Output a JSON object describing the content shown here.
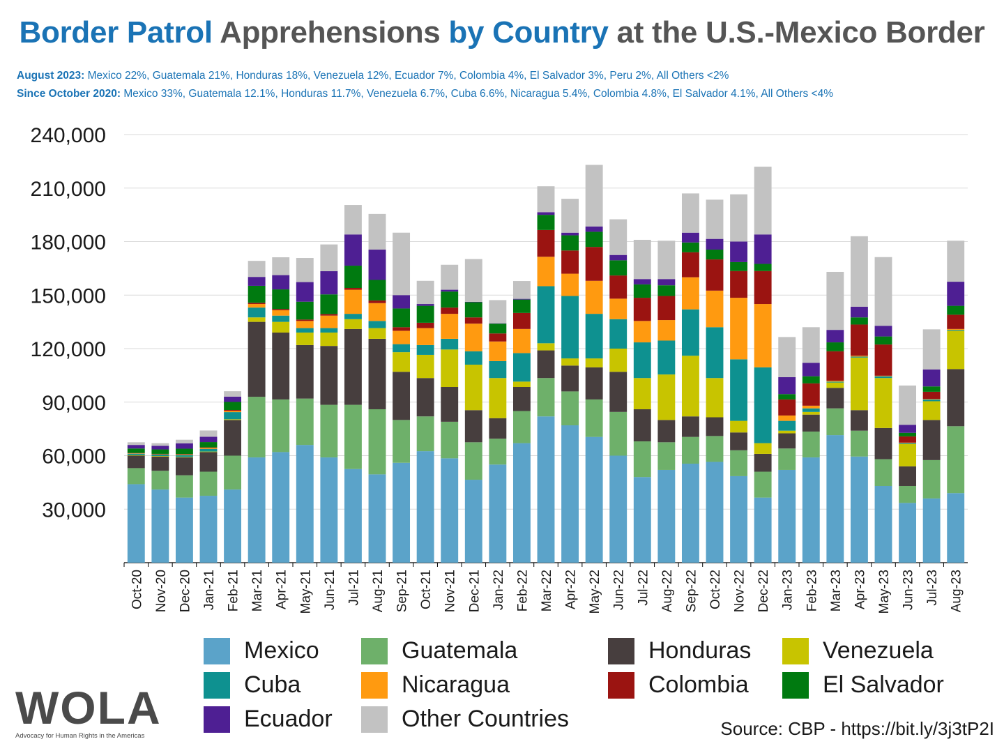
{
  "title": {
    "part1": "Border Patrol",
    "part2": " Apprehensions ",
    "part3": "by Country",
    "part4": " at the U.S.-Mexico Border"
  },
  "subtitle1": {
    "label": "August 2023:",
    "text": " Mexico 22%, Guatemala 21%, Honduras 18%, Venezuela 12%, Ecuador 7%, Colombia 4%, El Salvador 3%, Peru 2%, All Others <2%"
  },
  "subtitle2": {
    "label": "Since October 2020:",
    "text": " Mexico 33%, Guatemala 12.1%, Honduras 11.7%, Venezuela 6.7%, Cuba 6.6%, Nicaragua 5.4%, Colombia 4.8%, El Salvador 4.1%, All Others <4%"
  },
  "logo": {
    "text": "WOLA",
    "tagline": "Advocacy for Human Rights in the Americas"
  },
  "source": "Source: CBP - https://bit.ly/3j3tP2I",
  "chart_data": {
    "type": "bar",
    "stacked": true,
    "ylim": [
      0,
      240000
    ],
    "yticks": [
      "30,000",
      "60,000",
      "90,000",
      "120,000",
      "150,000",
      "180,000",
      "210,000",
      "240,000"
    ],
    "grid": true,
    "legend_position": "bottom",
    "categories": [
      "Oct-20",
      "Nov-20",
      "Dec-20",
      "Jan-21",
      "Feb-21",
      "Mar-21",
      "Apr-21",
      "May-21",
      "Jun-21",
      "Jul-21",
      "Aug-21",
      "Sep-21",
      "Oct-21",
      "Nov-21",
      "Dec-21",
      "Jan-22",
      "Feb-22",
      "Mar-22",
      "Apr-22",
      "May-22",
      "Jun-22",
      "Jul-22",
      "Aug-22",
      "Sep-22",
      "Oct-22",
      "Nov-22",
      "Dec-22",
      "Jan-23",
      "Feb-23",
      "Mar-23",
      "Apr-23",
      "May-23",
      "Jun-23",
      "Jul-23",
      "Aug-23"
    ],
    "series": [
      {
        "name": "Mexico",
        "color": "#5ba3c9",
        "values": [
          44000,
          41000,
          36500,
          37500,
          41000,
          59000,
          62000,
          66000,
          59000,
          52500,
          49500,
          56000,
          62500,
          58500,
          46500,
          55000,
          67000,
          82000,
          77000,
          70500,
          60000,
          48000,
          52000,
          55500,
          56500,
          48500,
          36500,
          52000,
          59000,
          71500,
          59500,
          43000,
          33500,
          36000,
          39000
        ]
      },
      {
        "name": "Guatemala",
        "color": "#6eb06a",
        "values": [
          9000,
          10500,
          12500,
          13500,
          19000,
          34000,
          29500,
          26000,
          29500,
          36000,
          36500,
          24000,
          19500,
          20500,
          21000,
          14500,
          18000,
          21500,
          19000,
          21000,
          24500,
          20000,
          15500,
          15000,
          14500,
          14500,
          14500,
          12000,
          14500,
          15000,
          14500,
          15000,
          9500,
          21500,
          37500
        ]
      },
      {
        "name": "Honduras",
        "color": "#473e3e",
        "values": [
          7000,
          8000,
          10000,
          11000,
          20000,
          42000,
          37500,
          30000,
          33000,
          42500,
          39500,
          27000,
          21500,
          19500,
          18000,
          11500,
          13500,
          15500,
          14500,
          18000,
          22500,
          18000,
          12500,
          11500,
          10500,
          10000,
          10000,
          8500,
          9500,
          11500,
          11500,
          17500,
          11000,
          22500,
          32000
        ]
      },
      {
        "name": "Venezuela",
        "color": "#c8c400",
        "values": [
          300,
          300,
          300,
          300,
          400,
          2500,
          6000,
          7000,
          7500,
          5500,
          6000,
          11000,
          13000,
          21000,
          25500,
          22500,
          3000,
          4000,
          4000,
          5000,
          13000,
          17500,
          25500,
          34000,
          22000,
          6500,
          6000,
          1500,
          1500,
          3000,
          29500,
          28000,
          12500,
          10500,
          21500
        ]
      },
      {
        "name": "Cuba",
        "color": "#0e9190",
        "values": [
          800,
          800,
          1000,
          1500,
          4000,
          5500,
          3500,
          2500,
          2500,
          3000,
          4000,
          4500,
          5500,
          6000,
          7500,
          9500,
          16000,
          32000,
          35000,
          25000,
          16500,
          20000,
          19000,
          26000,
          28500,
          34500,
          42500,
          5500,
          2000,
          500,
          500,
          1000,
          500,
          1000,
          500
        ]
      },
      {
        "name": "Nicaragua",
        "color": "#ff9a10",
        "values": [
          200,
          200,
          300,
          500,
          700,
          2000,
          3000,
          4000,
          7000,
          13500,
          10000,
          7500,
          9500,
          14000,
          15500,
          11000,
          13500,
          16500,
          12500,
          18500,
          11500,
          12000,
          11500,
          18000,
          20500,
          34500,
          35500,
          3000,
          1500,
          500,
          500,
          300,
          300,
          300,
          500
        ]
      },
      {
        "name": "Colombia",
        "color": "#9b1411",
        "values": [
          200,
          200,
          300,
          300,
          500,
          700,
          700,
          800,
          900,
          1000,
          1500,
          2000,
          3000,
          3500,
          3500,
          4500,
          9000,
          15000,
          13000,
          19000,
          13000,
          13000,
          13500,
          14000,
          17500,
          15000,
          18500,
          9000,
          12500,
          16500,
          17500,
          17500,
          3500,
          4000,
          8000
        ]
      },
      {
        "name": "El Salvador",
        "color": "#007a10",
        "values": [
          2500,
          2500,
          3000,
          3000,
          4500,
          9500,
          11000,
          10000,
          11000,
          12500,
          11500,
          10500,
          9500,
          9000,
          8500,
          5500,
          7500,
          8500,
          8500,
          8500,
          8500,
          7500,
          6000,
          5500,
          5500,
          5000,
          4000,
          3000,
          4000,
          5000,
          4000,
          4500,
          2000,
          3000,
          5000
        ]
      },
      {
        "name": "Ecuador",
        "color": "#4e1f93",
        "values": [
          2000,
          2000,
          3000,
          3000,
          3000,
          5000,
          8000,
          11000,
          13000,
          17500,
          17000,
          7500,
          1000,
          1000,
          200,
          200,
          400,
          1500,
          1500,
          3000,
          3000,
          3000,
          3500,
          5500,
          6000,
          11500,
          16500,
          9500,
          7500,
          7000,
          6000,
          6000,
          4500,
          9500,
          13500
        ]
      },
      {
        "name": "Other Countries",
        "color": "#c2c2c2",
        "values": [
          1500,
          1500,
          2000,
          3500,
          3000,
          9000,
          10000,
          13500,
          15000,
          16500,
          20000,
          35000,
          13000,
          14000,
          24000,
          13000,
          10000,
          14500,
          19000,
          34500,
          20000,
          22000,
          21500,
          22000,
          22000,
          26500,
          38000,
          22500,
          20000,
          32500,
          39500,
          38500,
          22000,
          22500,
          23000
        ]
      }
    ]
  }
}
